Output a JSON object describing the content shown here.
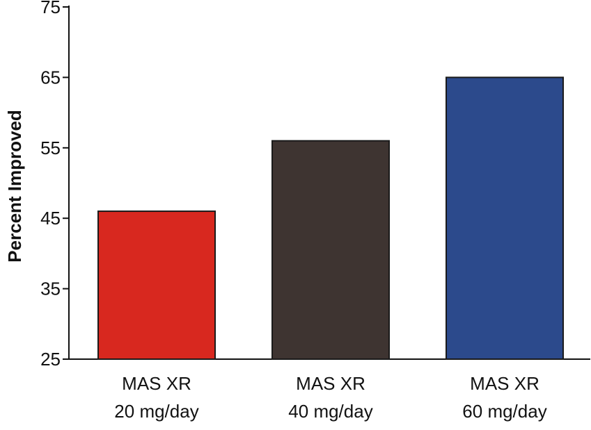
{
  "chart_data": {
    "type": "bar",
    "title": "",
    "xlabel": "",
    "ylabel": "Percent Improved",
    "ylim": [
      25,
      75
    ],
    "yticks": [
      25,
      35,
      45,
      55,
      65,
      75
    ],
    "grid": false,
    "categories": [
      {
        "line1": "MAS XR",
        "line2": "20 mg/day"
      },
      {
        "line1": "MAS XR",
        "line2": "40 mg/day"
      },
      {
        "line1": "MAS XR",
        "line2": "60 mg/day"
      }
    ],
    "values": [
      46,
      56,
      65
    ],
    "colors": [
      "#d8281f",
      "#3e3431",
      "#2c4a8c"
    ]
  }
}
